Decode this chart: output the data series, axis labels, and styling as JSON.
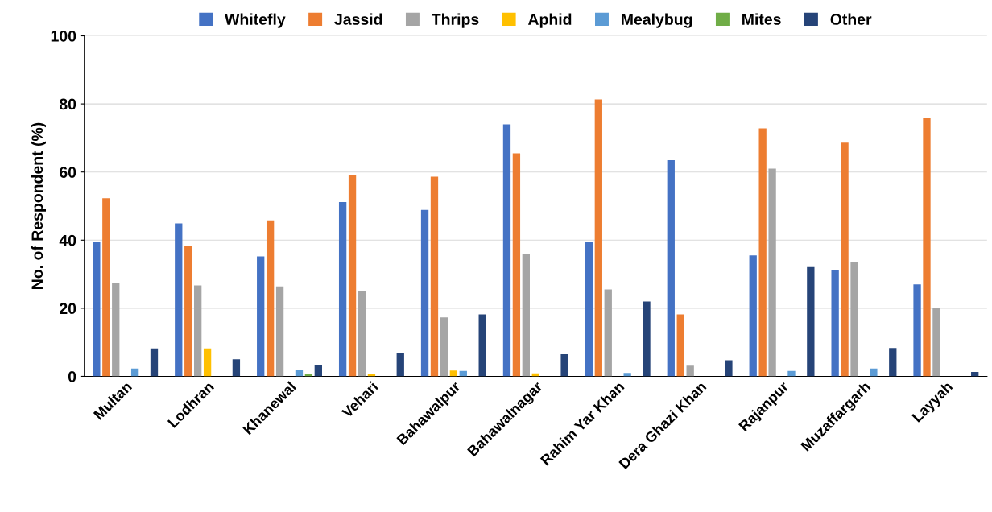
{
  "chart_data": {
    "type": "bar",
    "ylabel": "No. of Respondent (%)",
    "categories": [
      "Multan",
      "Lodhran",
      "Khanewal",
      "Vehari",
      "Bahawalpur",
      "Bahawalnagar",
      "Rahim Yar Khan",
      "Dera Ghazi Khan",
      "Rajanpur",
      "Muzaffargarh",
      "Layyah"
    ],
    "series": [
      {
        "name": "Whitefly",
        "color": "#4472c4",
        "values": [
          39.5,
          44.9,
          35.2,
          51.2,
          48.9,
          74.0,
          39.4,
          63.5,
          35.5,
          31.2,
          27.0
        ]
      },
      {
        "name": "Jassid",
        "color": "#ed7d31",
        "values": [
          52.3,
          38.2,
          45.8,
          59.0,
          58.6,
          65.5,
          81.3,
          18.2,
          72.8,
          68.6,
          75.8
        ]
      },
      {
        "name": "Thrips",
        "color": "#a5a5a5",
        "values": [
          27.3,
          26.7,
          26.4,
          25.2,
          17.3,
          36.0,
          25.5,
          3.1,
          61.0,
          33.6,
          20.0
        ]
      },
      {
        "name": "Aphid",
        "color": "#ffc000",
        "values": [
          0,
          8.2,
          0,
          0.7,
          1.7,
          0.9,
          0,
          0,
          0,
          0,
          0
        ]
      },
      {
        "name": "Mealybug",
        "color": "#5b9bd5",
        "values": [
          2.3,
          0,
          2.0,
          0,
          1.6,
          0,
          1.0,
          0,
          1.6,
          2.3,
          0
        ]
      },
      {
        "name": "Mites",
        "color": "#70ad47",
        "values": [
          0,
          0,
          0.8,
          0,
          0,
          0,
          0,
          0,
          0,
          0,
          0
        ]
      },
      {
        "name": "Other",
        "color": "#264478",
        "values": [
          8.2,
          5.0,
          3.2,
          6.8,
          18.2,
          6.5,
          22.0,
          4.7,
          32.1,
          8.3,
          1.3
        ]
      }
    ],
    "ylim": [
      0,
      100
    ],
    "yticks": [
      0,
      20,
      40,
      60,
      80,
      100
    ],
    "grid": "y",
    "legend": "top"
  }
}
